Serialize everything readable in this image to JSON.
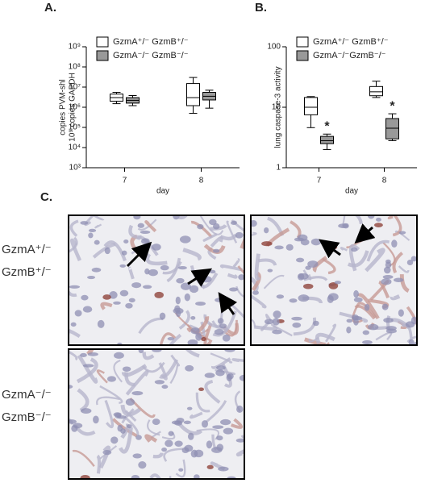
{
  "chart_data": [
    {
      "type": "box",
      "panel": "A.",
      "ylabel": [
        "copies PVM-shl",
        "10⁹ copies GAPDH"
      ],
      "xlabel": "day",
      "categories": [
        "7",
        "8"
      ],
      "log_scale": true,
      "legend": "upper left",
      "ylim": [
        1000,
        1000000000
      ],
      "yticks": [
        {
          "value": 1000,
          "label": "10³"
        },
        {
          "value": 10000,
          "label": "10⁴"
        },
        {
          "value": 100000,
          "label": "10⁵"
        },
        {
          "value": 1000000,
          "label": "10⁶"
        },
        {
          "value": 10000000,
          "label": "10⁷"
        },
        {
          "value": 100000000,
          "label": "10⁸"
        },
        {
          "value": 1000000000,
          "label": "10⁹"
        }
      ],
      "series": [
        {
          "name": "GzmA⁺/⁻ GzmB⁺/⁻",
          "color": "#ffffff",
          "values": [
            [
              1500000,
              2000000,
              3000000,
              4500000,
              5500000
            ],
            [
              500000,
              1200000,
              3000000,
              15000000,
              30000000
            ]
          ]
        },
        {
          "name": "GzmA⁻/⁻ GzmB⁻/⁻",
          "color": "#999999",
          "values": [
            [
              1200000,
              1600000,
              2200000,
              3000000,
              3800000
            ],
            [
              900000,
              2300000,
              3500000,
              5500000,
              7000000
            ]
          ]
        }
      ]
    },
    {
      "type": "box",
      "panel": "B.",
      "ylabel": [
        "lung caspase-3 activity"
      ],
      "xlabel": "day",
      "categories": [
        "7",
        "8"
      ],
      "log_scale": true,
      "legend": "upper left",
      "ylim": [
        1,
        100
      ],
      "yticks": [
        1,
        10,
        100
      ],
      "series": [
        {
          "name": "GzmA⁺/⁻ GzmB⁺/⁻",
          "color": "#ffffff",
          "values": [
            [
              4.6,
              7.5,
              10,
              14.5,
              15
            ],
            [
              14.5,
              15.5,
              18,
              22,
              27
            ]
          ]
        },
        {
          "name": "GzmA⁻/⁻GzmB⁻/⁻",
          "color": "#999999",
          "values": [
            [
              2,
              2.5,
              2.8,
              3.3,
              3.6
            ],
            [
              2.8,
              3,
              4.5,
              6.5,
              7.8
            ]
          ],
          "annotations": [
            "*",
            "*"
          ]
        }
      ]
    }
  ],
  "panel_c": {
    "label": "C.",
    "rows": [
      [
        "GzmA⁺/⁻",
        "GzmB⁺/⁻"
      ],
      [
        "GzmA⁻/⁻",
        "GzmB⁻/⁻"
      ]
    ]
  }
}
